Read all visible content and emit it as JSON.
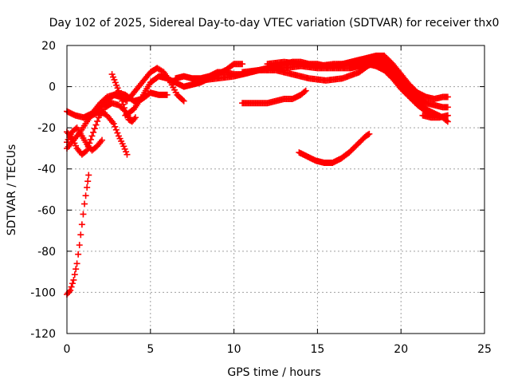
{
  "chart_data": {
    "type": "scatter",
    "title": "Day 102 of 2025, Sidereal Day-to-day VTEC variation (SDTVAR) for receiver thx0",
    "xlabel": "GPS time / hours",
    "ylabel": "SDTVAR / TECUs",
    "xlim": [
      0,
      25
    ],
    "ylim": [
      -120,
      20
    ],
    "xticks": [
      0,
      5,
      10,
      15,
      20,
      25
    ],
    "yticks": [
      -120,
      -100,
      -80,
      -60,
      -40,
      -20,
      0,
      20
    ],
    "grid": true,
    "legend": "none",
    "marker": "plus",
    "color": "#ff0000",
    "series": [
      {
        "points": [
          [
            0.0,
            -101
          ],
          [
            0.2,
            -99
          ],
          [
            0.4,
            -94
          ],
          [
            0.6,
            -86
          ],
          [
            0.75,
            -77
          ],
          [
            0.9,
            -67
          ],
          [
            1.05,
            -57
          ],
          [
            1.2,
            -49
          ],
          [
            1.3,
            -43
          ]
        ]
      },
      {
        "points": [
          [
            0.0,
            -22
          ],
          [
            0.3,
            -25
          ],
          [
            0.6,
            -30
          ],
          [
            0.9,
            -33
          ],
          [
            1.2,
            -31
          ],
          [
            1.5,
            -24
          ],
          [
            1.9,
            -15
          ],
          [
            2.3,
            -10
          ],
          [
            2.7,
            -8
          ],
          [
            3.1,
            -9
          ],
          [
            3.5,
            -12
          ],
          [
            3.8,
            -16
          ]
        ]
      },
      {
        "points": [
          [
            0.0,
            -27
          ],
          [
            0.3,
            -22
          ],
          [
            0.6,
            -20
          ],
          [
            0.9,
            -24
          ],
          [
            1.2,
            -28
          ],
          [
            1.5,
            -31
          ],
          [
            1.8,
            -29
          ],
          [
            2.1,
            -26
          ]
        ]
      },
      {
        "points": [
          [
            0.0,
            -30
          ],
          [
            0.4,
            -26
          ],
          [
            0.8,
            -22
          ],
          [
            1.2,
            -17
          ],
          [
            1.6,
            -12
          ],
          [
            2.0,
            -8
          ],
          [
            2.4,
            -5
          ],
          [
            2.8,
            -4
          ],
          [
            3.2,
            -5
          ],
          [
            3.6,
            -7
          ]
        ]
      },
      {
        "points": [
          [
            0.0,
            -12
          ],
          [
            0.5,
            -14
          ],
          [
            1.0,
            -15
          ],
          [
            1.5,
            -13
          ],
          [
            2.0,
            -10
          ],
          [
            2.5,
            -6
          ],
          [
            3.0,
            -3
          ],
          [
            3.5,
            -4
          ],
          [
            4.0,
            -7
          ],
          [
            4.5,
            -6
          ],
          [
            5.0,
            -3
          ],
          [
            5.5,
            -4
          ],
          [
            6.0,
            -4
          ]
        ]
      },
      {
        "points": [
          [
            1.0,
            -15
          ],
          [
            1.5,
            -14
          ],
          [
            2.0,
            -12
          ],
          [
            2.4,
            -14
          ],
          [
            2.8,
            -18
          ],
          [
            3.1,
            -24
          ],
          [
            3.4,
            -29
          ],
          [
            3.6,
            -33
          ]
        ]
      },
      {
        "points": [
          [
            2.7,
            6
          ],
          [
            2.9,
            2
          ],
          [
            3.1,
            -2
          ],
          [
            3.3,
            -7
          ],
          [
            3.5,
            -12
          ],
          [
            3.7,
            -16
          ],
          [
            3.9,
            -17
          ],
          [
            4.1,
            -15
          ]
        ]
      },
      {
        "points": [
          [
            3.8,
            -5
          ],
          [
            4.2,
            -1
          ],
          [
            4.6,
            3
          ],
          [
            5.0,
            7
          ],
          [
            5.4,
            9
          ],
          [
            5.8,
            7
          ],
          [
            6.2,
            2
          ],
          [
            6.6,
            -4
          ],
          [
            7.0,
            -7
          ]
        ]
      },
      {
        "points": [
          [
            3.5,
            -14
          ],
          [
            4.0,
            -11
          ],
          [
            4.5,
            -5
          ],
          [
            5.0,
            2
          ],
          [
            5.5,
            5
          ],
          [
            6.0,
            4
          ],
          [
            6.5,
            2
          ],
          [
            7.0,
            0
          ],
          [
            7.5,
            1
          ],
          [
            8.0,
            2
          ],
          [
            8.5,
            4
          ],
          [
            9.0,
            6
          ],
          [
            9.5,
            8
          ],
          [
            10.0,
            11
          ],
          [
            10.5,
            11
          ]
        ]
      },
      {
        "points": [
          [
            6.5,
            4
          ],
          [
            7.0,
            5
          ],
          [
            7.5,
            4
          ],
          [
            8.0,
            4
          ],
          [
            8.5,
            5
          ],
          [
            9.0,
            7
          ],
          [
            9.5,
            7
          ],
          [
            10.0,
            6
          ],
          [
            10.5,
            6
          ],
          [
            11.0,
            7
          ],
          [
            11.5,
            8
          ],
          [
            12.0,
            9
          ],
          [
            12.5,
            10
          ],
          [
            13.0,
            11
          ],
          [
            13.5,
            12
          ],
          [
            14.0,
            12
          ],
          [
            14.5,
            11
          ],
          [
            15.0,
            11
          ],
          [
            15.5,
            10
          ],
          [
            16.0,
            10
          ],
          [
            16.5,
            11
          ],
          [
            17.0,
            12
          ],
          [
            17.5,
            13
          ],
          [
            18.0,
            14
          ],
          [
            18.5,
            15
          ],
          [
            19.0,
            15
          ],
          [
            19.5,
            11
          ],
          [
            20.0,
            6
          ],
          [
            20.5,
            1
          ],
          [
            21.0,
            -3
          ],
          [
            21.5,
            -5
          ],
          [
            22.0,
            -6
          ],
          [
            22.5,
            -5
          ],
          [
            22.8,
            -5
          ]
        ]
      },
      {
        "points": [
          [
            8.0,
            3
          ],
          [
            9.0,
            4
          ],
          [
            10.0,
            5
          ],
          [
            11.0,
            7
          ],
          [
            12.0,
            9
          ],
          [
            13.0,
            9
          ],
          [
            14.0,
            10
          ],
          [
            15.0,
            9
          ],
          [
            16.0,
            9
          ],
          [
            17.0,
            9
          ],
          [
            17.5,
            10
          ],
          [
            18.0,
            12
          ],
          [
            18.5,
            14
          ],
          [
            19.0,
            13
          ],
          [
            19.5,
            9
          ],
          [
            20.0,
            4
          ],
          [
            20.5,
            -1
          ],
          [
            21.0,
            -5
          ],
          [
            21.5,
            -8
          ],
          [
            22.0,
            -9
          ],
          [
            22.5,
            -10
          ],
          [
            22.8,
            -10
          ]
        ]
      },
      {
        "points": [
          [
            10.5,
            7
          ],
          [
            11.5,
            8
          ],
          [
            12.5,
            8
          ],
          [
            13.5,
            6
          ],
          [
            14.5,
            4
          ],
          [
            15.5,
            3
          ],
          [
            16.5,
            4
          ],
          [
            17.5,
            7
          ],
          [
            18.0,
            10
          ],
          [
            18.5,
            12
          ],
          [
            19.0,
            11
          ],
          [
            19.5,
            7
          ],
          [
            20.0,
            2
          ],
          [
            20.5,
            -3
          ],
          [
            21.0,
            -7
          ],
          [
            21.5,
            -11
          ],
          [
            22.0,
            -13
          ],
          [
            22.5,
            -15
          ],
          [
            22.8,
            -17
          ]
        ]
      },
      {
        "points": [
          [
            12.0,
            11
          ],
          [
            13.0,
            12
          ],
          [
            14.0,
            11
          ],
          [
            15.0,
            10
          ],
          [
            16.0,
            11
          ],
          [
            17.0,
            11
          ],
          [
            18.0,
            11
          ],
          [
            18.5,
            10
          ],
          [
            19.0,
            8
          ],
          [
            19.5,
            4
          ],
          [
            20.0,
            -1
          ],
          [
            20.5,
            -5
          ],
          [
            21.0,
            -9
          ],
          [
            21.5,
            -12
          ],
          [
            22.0,
            -14
          ]
        ]
      },
      {
        "points": [
          [
            21.3,
            -14
          ],
          [
            21.8,
            -15
          ],
          [
            22.3,
            -15
          ],
          [
            22.8,
            -14
          ]
        ]
      },
      {
        "points": [
          [
            10.5,
            -8
          ],
          [
            11.0,
            -8
          ],
          [
            11.5,
            -8
          ],
          [
            12.0,
            -8
          ],
          [
            12.5,
            -7
          ],
          [
            13.0,
            -6
          ],
          [
            13.5,
            -6
          ],
          [
            14.0,
            -4
          ],
          [
            14.3,
            -2
          ]
        ]
      },
      {
        "points": [
          [
            13.9,
            -32
          ],
          [
            14.4,
            -34
          ],
          [
            14.9,
            -36
          ],
          [
            15.4,
            -37
          ],
          [
            15.9,
            -37
          ],
          [
            16.4,
            -35
          ],
          [
            16.9,
            -32
          ],
          [
            17.4,
            -28
          ],
          [
            17.9,
            -24
          ],
          [
            18.1,
            -23
          ]
        ]
      }
    ]
  }
}
